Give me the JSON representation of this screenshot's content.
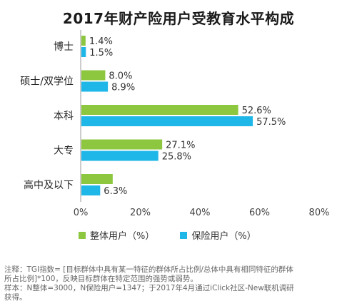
{
  "chart_data": {
    "type": "bar",
    "orientation": "horizontal",
    "title": "2017年财产险用户受教育水平构成",
    "categories": [
      "博士",
      "硕士/双学位",
      "本科",
      "大专",
      "高中及以下"
    ],
    "series": [
      {
        "name": "整体用户（%）",
        "color": "#8dc63f",
        "values": [
          1.4,
          8.0,
          52.6,
          27.1,
          10.5
        ]
      },
      {
        "name": "保险用户（%）",
        "color": "#1fb6e8",
        "values": [
          1.5,
          8.9,
          57.5,
          25.8,
          6.3
        ]
      }
    ],
    "data_labels": [
      [
        "1.4%",
        "8.0%",
        "52.6%",
        "27.1%",
        ""
      ],
      [
        "1.5%",
        "8.9%",
        "57.5%",
        "25.8%",
        "6.3%"
      ]
    ],
    "xlim": [
      0,
      80
    ],
    "x_ticks": [
      "0%",
      "20%",
      "40%",
      "60%",
      "80%"
    ],
    "x_tick_values": [
      0,
      20,
      40,
      60,
      80
    ],
    "grid": false,
    "legend_position": "bottom"
  },
  "footnote": {
    "line1": "注释：TGI指数= [目标群体中具有某一特征的群体所占比例/总体中具有相同特征的群体",
    "line2": "所占比例]*100，反映目标群体在特定范围的强势或弱势。",
    "line3": "样本：N整体=3000，N保险用户=1347；于2017年4月通过iClick社区-New联机调研",
    "line4": "获得。"
  }
}
